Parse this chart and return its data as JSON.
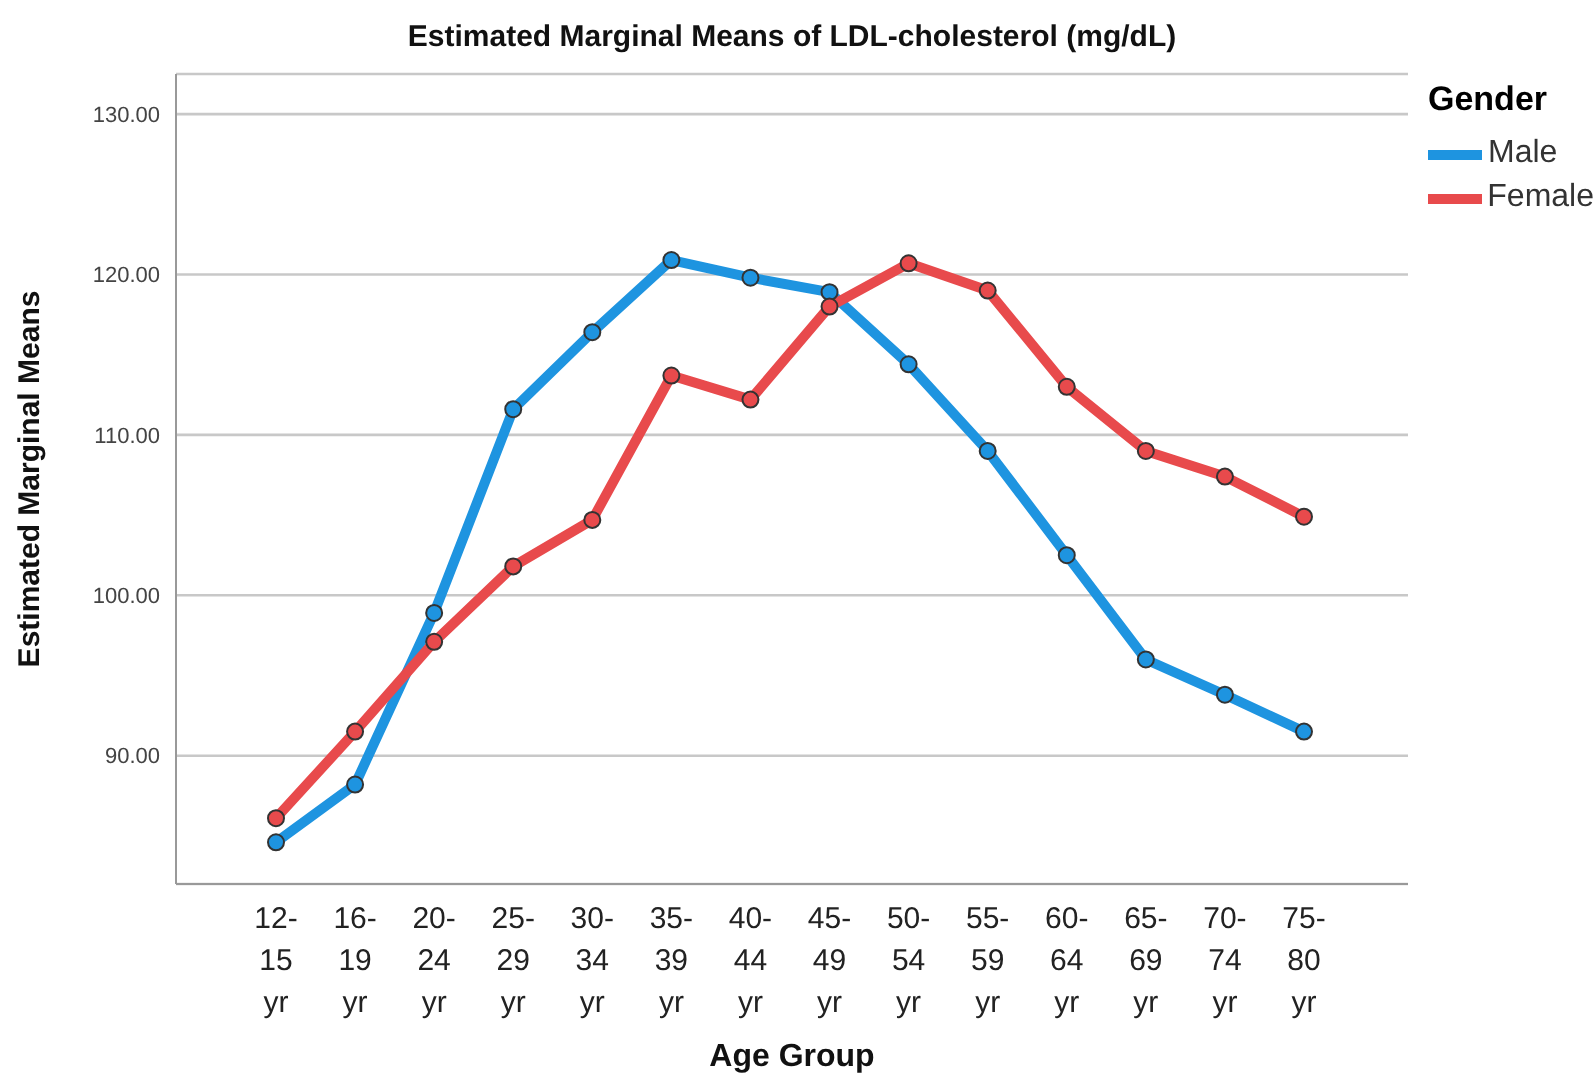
{
  "chart_data": {
    "type": "line",
    "title": "Estimated Marginal Means of LDL-cholesterol (mg/dL)",
    "xlabel": "Age Group",
    "ylabel": "Estimated Marginal Means",
    "legend_title": "Gender",
    "categories": [
      "12-15 yr",
      "16-19 yr",
      "20-24 yr",
      "25-29 yr",
      "30-34 yr",
      "35-39 yr",
      "40-44 yr",
      "45-49 yr",
      "50-54 yr",
      "55-59 yr",
      "60-64 yr",
      "65-69 yr",
      "70-74 yr",
      "75-80 yr"
    ],
    "series": [
      {
        "name": "Male",
        "color": "#1e94e0",
        "values": [
          84.6,
          88.2,
          98.9,
          111.6,
          116.4,
          120.9,
          119.8,
          118.9,
          114.4,
          109.0,
          102.5,
          96.0,
          93.8,
          91.5
        ]
      },
      {
        "name": "Female",
        "color": "#e84a4c",
        "values": [
          86.1,
          91.5,
          97.1,
          101.8,
          104.7,
          113.7,
          112.2,
          118.0,
          120.7,
          119.0,
          113.0,
          109.0,
          107.4,
          104.9
        ]
      }
    ],
    "ylim": [
      82,
      132.5
    ],
    "yticks": [
      {
        "value": 90,
        "label": "90.00"
      },
      {
        "value": 100,
        "label": "100.00"
      },
      {
        "value": 110,
        "label": "110.00"
      },
      {
        "value": 120,
        "label": "120.00"
      },
      {
        "value": 130,
        "label": "130.00"
      }
    ],
    "grid": "y",
    "legend": "top right",
    "marker": "circle",
    "line_style": "solid"
  }
}
